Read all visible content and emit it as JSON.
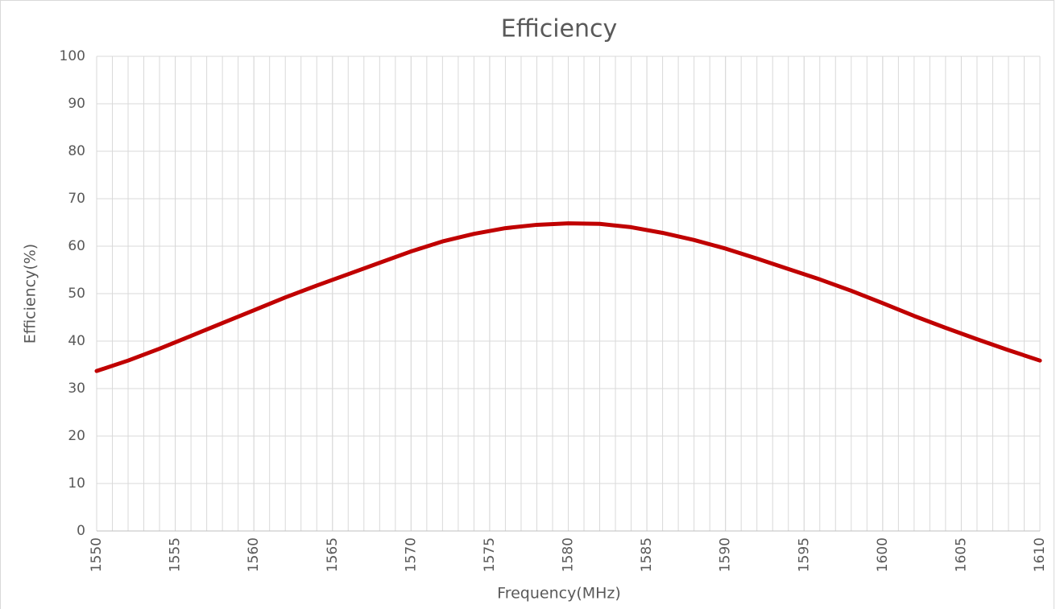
{
  "chart_data": {
    "type": "line",
    "title": "Efficiency",
    "x_label": "Frequency(MHz)",
    "y_label": "Efficiency(%)",
    "x": [
      1550,
      1552,
      1554,
      1556,
      1558,
      1560,
      1562,
      1564,
      1566,
      1568,
      1570,
      1572,
      1574,
      1576,
      1578,
      1580,
      1582,
      1584,
      1586,
      1588,
      1590,
      1592,
      1594,
      1596,
      1598,
      1600,
      1602,
      1604,
      1606,
      1608,
      1610
    ],
    "series": [
      {
        "name": "Efficiency",
        "color": "#c00000",
        "values": [
          33.7,
          35.9,
          38.4,
          41.1,
          43.8,
          46.5,
          49.2,
          51.7,
          54.1,
          56.5,
          58.9,
          61.0,
          62.6,
          63.8,
          64.5,
          64.8,
          64.7,
          64.0,
          62.8,
          61.3,
          59.5,
          57.4,
          55.2,
          53.0,
          50.6,
          48.0,
          45.3,
          42.8,
          40.4,
          38.1,
          35.9
        ]
      }
    ],
    "xlim": [
      1550,
      1610
    ],
    "xticks": [
      1550,
      1555,
      1560,
      1565,
      1570,
      1575,
      1580,
      1585,
      1590,
      1595,
      1600,
      1605,
      1610
    ],
    "x_minor_grid_step": 1,
    "ylim": [
      0,
      100
    ],
    "yticks": [
      0,
      10,
      20,
      30,
      40,
      50,
      60,
      70,
      80,
      90,
      100
    ],
    "grid": true,
    "legend": false
  }
}
